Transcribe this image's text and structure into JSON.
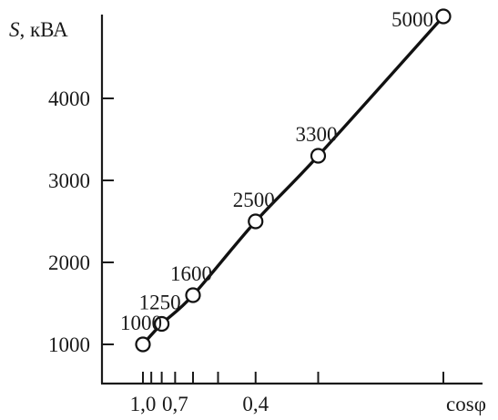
{
  "chart_data": {
    "type": "line",
    "title": "",
    "ylabel_symbol": "S",
    "ylabel_unit": ", кВА",
    "xlabel": "cosφ",
    "x_ticks": [
      {
        "value": 1.0,
        "label": "1,0"
      },
      {
        "value": 0.9,
        "label": ""
      },
      {
        "value": 0.8,
        "label": ""
      },
      {
        "value": 0.7,
        "label": "0,7"
      },
      {
        "value": 0.6,
        "label": ""
      },
      {
        "value": 0.5,
        "label": ""
      },
      {
        "value": 0.4,
        "label": "0,4"
      },
      {
        "value": 0.3,
        "label": ""
      },
      {
        "value": 0.2,
        "label": ""
      }
    ],
    "y_ticks": [
      {
        "value": 1000,
        "label": "1000"
      },
      {
        "value": 2000,
        "label": "2000"
      },
      {
        "value": 3000,
        "label": "3000"
      },
      {
        "value": 4000,
        "label": "4000"
      }
    ],
    "xlim": [
      1.0,
      0.2
    ],
    "ylim": [
      1000,
      5000
    ],
    "series": [
      {
        "points": [
          {
            "x": 1.0,
            "y": 1000,
            "label": "1000"
          },
          {
            "x": 0.8,
            "y": 1250,
            "label": "1250"
          },
          {
            "x": 0.6,
            "y": 1600,
            "label": "1600"
          },
          {
            "x": 0.4,
            "y": 2500,
            "label": "2500"
          },
          {
            "x": 0.3,
            "y": 3300,
            "label": "3300"
          },
          {
            "x": 0.2,
            "y": 5000,
            "label": "5000"
          }
        ]
      }
    ],
    "grid": false,
    "colors": {
      "line": "#111111",
      "marker_fill": "#ffffff",
      "axis": "#1a1a1a"
    }
  }
}
